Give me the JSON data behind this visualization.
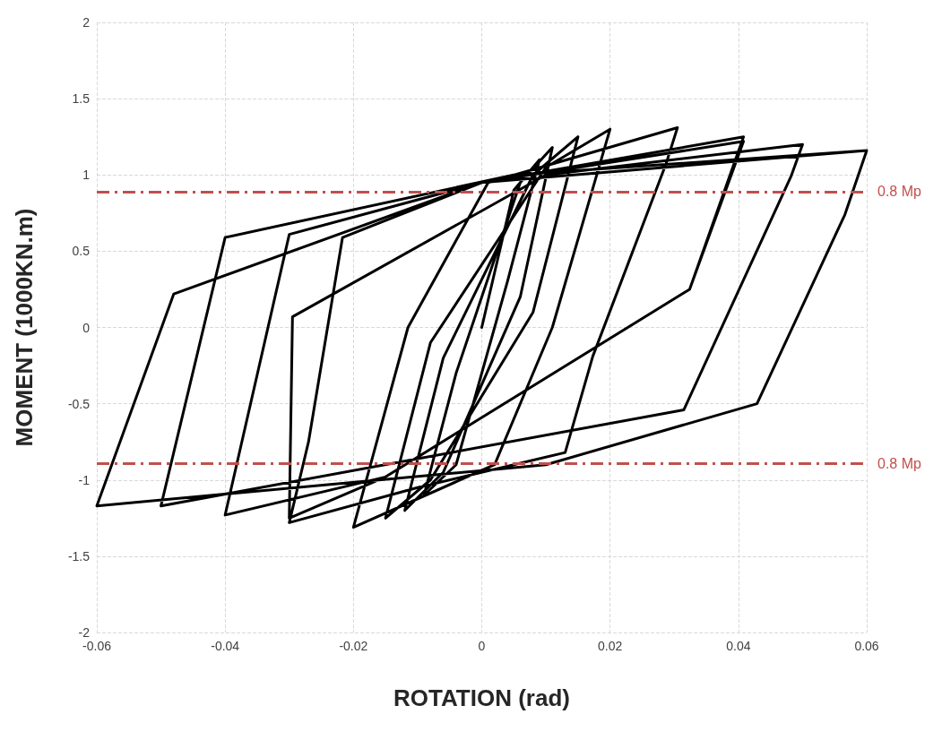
{
  "chart_data": {
    "type": "line",
    "xlabel": "ROTATION (rad)",
    "ylabel": "MOMENT (1000KN.m)",
    "xlim": [
      -0.06,
      0.06
    ],
    "xticks": [
      -0.06,
      -0.04,
      -0.02,
      0,
      0.02,
      0.04,
      0.06
    ],
    "ylim": [
      -2,
      2
    ],
    "yticks": [
      -2,
      -1.5,
      -1,
      -0.5,
      0,
      0.5,
      1,
      1.5,
      2
    ],
    "grid": true,
    "marker": "none",
    "line_style": "solid",
    "series": [
      {
        "color": "#000000",
        "x": [
          0,
          0.005,
          0.009,
          0.004,
          -0.004,
          -0.009,
          -0.004,
          0.006,
          0.011,
          0.006,
          -0.006,
          -0.012,
          -0.006,
          0.008,
          0.015,
          0.008,
          -0.008,
          -0.015,
          -0.008,
          0.01,
          0.02,
          0.011,
          0.002,
          -0.02,
          -0.0115,
          0.001,
          0.0305,
          0.0287,
          0.0173,
          0.013,
          -0.01,
          -0.03,
          -0.027,
          -0.0217,
          0,
          0.0408,
          0.0324,
          -0.015,
          -0.04,
          -0.03,
          0,
          0.0408,
          0.0324,
          -0.015,
          -0.03,
          -0.0295,
          0.01,
          0.05,
          0.0482,
          0.0315,
          -0.05,
          -0.04,
          0.005,
          0.06,
          0.0566,
          0.0429,
          0.01,
          -0.06,
          -0.048,
          0,
          0.06
        ],
        "values": [
          0,
          0.9,
          1.1,
          0.3,
          -0.9,
          -1.1,
          -0.3,
          0.95,
          1.18,
          0.2,
          -0.95,
          -1.2,
          -0.2,
          1.0,
          1.25,
          0.1,
          -1.0,
          -1.25,
          -0.1,
          1.05,
          1.3,
          0,
          -0.9,
          -1.31,
          0,
          0.95,
          1.31,
          1.07,
          -0.19,
          -0.82,
          -1.05,
          -1.28,
          -0.75,
          0.59,
          0.95,
          1.25,
          0.25,
          -0.98,
          -1.23,
          0.61,
          0.95,
          1.22,
          0.25,
          -0.98,
          -1.25,
          0.07,
          1.0,
          1.2,
          0.99,
          -0.54,
          -1.17,
          0.59,
          1.0,
          1.16,
          0.74,
          -0.5,
          -0.9,
          -1.17,
          0.22,
          0.95,
          1.16
        ]
      }
    ],
    "ref_lines": [
      {
        "axis": "y",
        "value": 0.89,
        "label": "0.8 Mp",
        "color": "#c0504d",
        "line_style": "dashed"
      },
      {
        "axis": "y",
        "value": -0.89,
        "label": "0.8 Mp",
        "color": "#c0504d",
        "line_style": "dashed"
      }
    ]
  }
}
